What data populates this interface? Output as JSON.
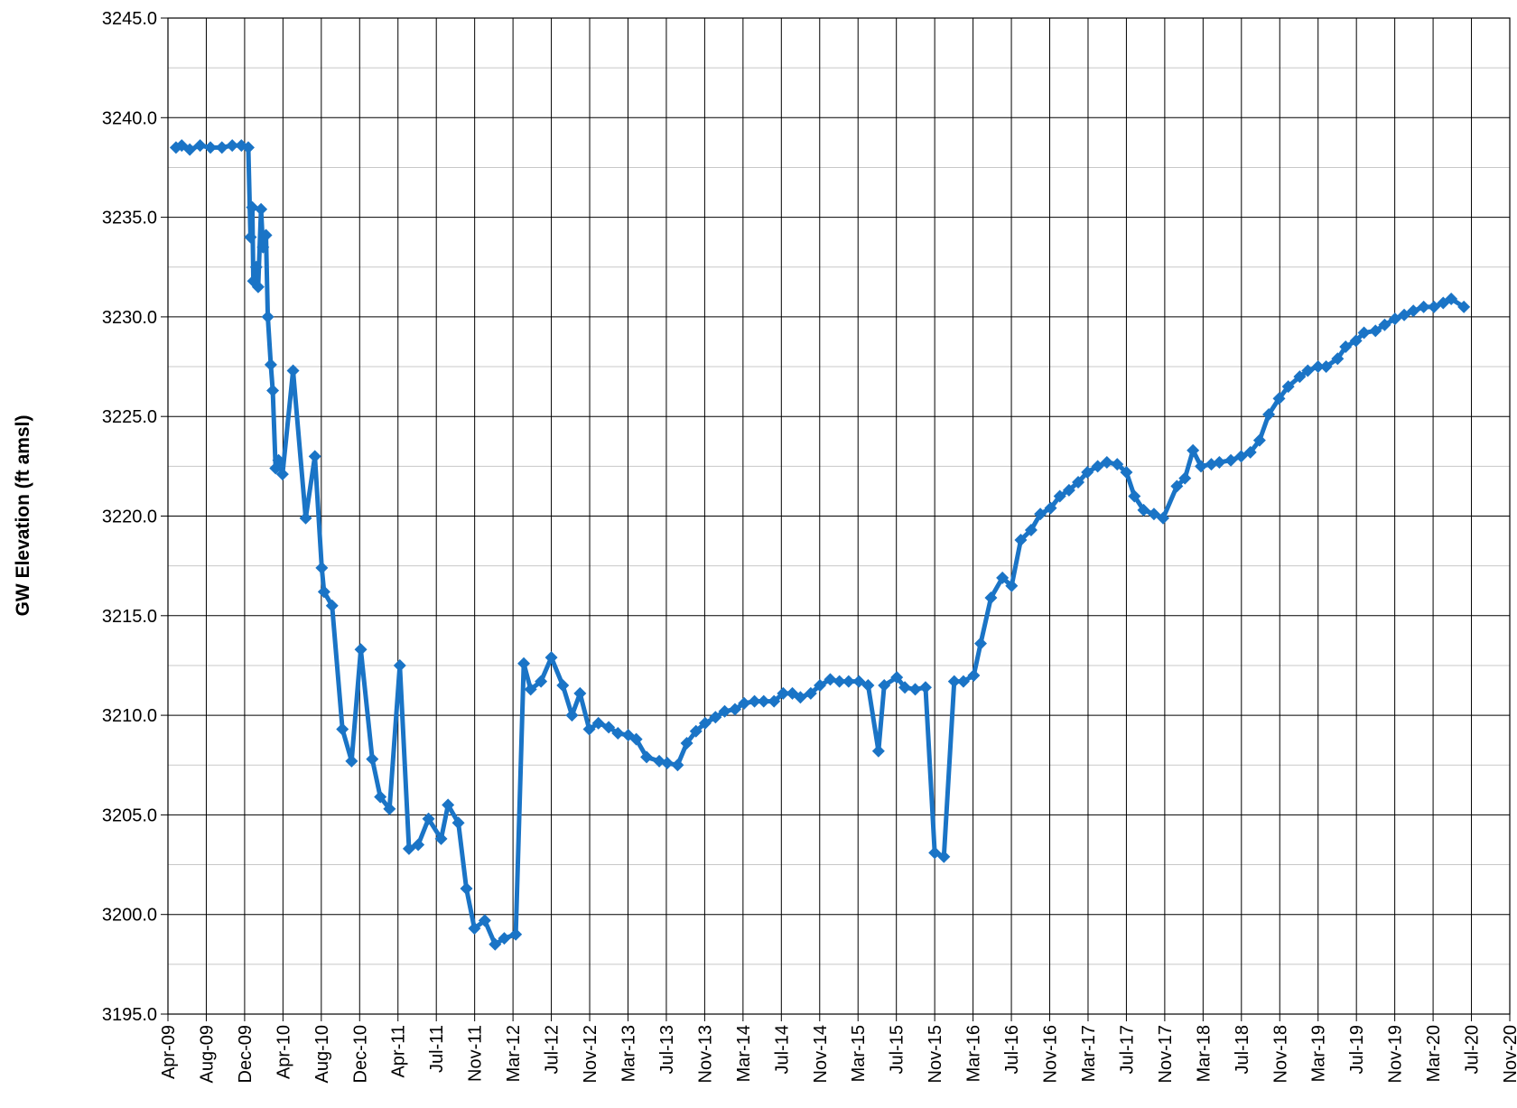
{
  "chart_data": {
    "type": "line",
    "y_label": "GW Elevation (ft amsl)",
    "xlim": [
      2009.25,
      2020.94
    ],
    "xticks": [
      {
        "value": 2009.25,
        "label": "Apr-09"
      },
      {
        "value": 2009.584,
        "label": "Aug-09"
      },
      {
        "value": 2009.918,
        "label": "Dec-09"
      },
      {
        "value": 2010.252,
        "label": "Apr-10"
      },
      {
        "value": 2010.586,
        "label": "Aug-10"
      },
      {
        "value": 2010.92,
        "label": "Dec-10"
      },
      {
        "value": 2011.254,
        "label": "Apr-11"
      },
      {
        "value": 2011.588,
        "label": "Jul-11"
      },
      {
        "value": 2011.922,
        "label": "Nov-11"
      },
      {
        "value": 2012.256,
        "label": "Mar-12"
      },
      {
        "value": 2012.59,
        "label": "Jul-12"
      },
      {
        "value": 2012.924,
        "label": "Nov-12"
      },
      {
        "value": 2013.258,
        "label": "Mar-13"
      },
      {
        "value": 2013.592,
        "label": "Jul-13"
      },
      {
        "value": 2013.926,
        "label": "Nov-13"
      },
      {
        "value": 2014.26,
        "label": "Mar-14"
      },
      {
        "value": 2014.594,
        "label": "Jul-14"
      },
      {
        "value": 2014.928,
        "label": "Nov-14"
      },
      {
        "value": 2015.262,
        "label": "Mar-15"
      },
      {
        "value": 2015.596,
        "label": "Jul-15"
      },
      {
        "value": 2015.93,
        "label": "Nov-15"
      },
      {
        "value": 2016.264,
        "label": "Mar-16"
      },
      {
        "value": 2016.598,
        "label": "Jul-16"
      },
      {
        "value": 2016.932,
        "label": "Nov-16"
      },
      {
        "value": 2017.266,
        "label": "Mar-17"
      },
      {
        "value": 2017.6,
        "label": "Jul-17"
      },
      {
        "value": 2017.934,
        "label": "Nov-17"
      },
      {
        "value": 2018.268,
        "label": "Mar-18"
      },
      {
        "value": 2018.602,
        "label": "Jul-18"
      },
      {
        "value": 2018.936,
        "label": "Nov-18"
      },
      {
        "value": 2019.27,
        "label": "Mar-19"
      },
      {
        "value": 2019.604,
        "label": "Jul-19"
      },
      {
        "value": 2019.938,
        "label": "Nov-19"
      },
      {
        "value": 2020.272,
        "label": "Mar-20"
      },
      {
        "value": 2020.606,
        "label": "Jul-20"
      },
      {
        "value": 2020.94,
        "label": "Nov-20"
      }
    ],
    "ylim": [
      3195,
      3245
    ],
    "yticks": [
      {
        "value": 3195,
        "label": "3195.0"
      },
      {
        "value": 3200,
        "label": "3200.0"
      },
      {
        "value": 3205,
        "label": "3205.0"
      },
      {
        "value": 3210,
        "label": "3210.0"
      },
      {
        "value": 3215,
        "label": "3215.0"
      },
      {
        "value": 3220,
        "label": "3220.0"
      },
      {
        "value": 3225,
        "label": "3225.0"
      },
      {
        "value": 3230,
        "label": "3230.0"
      },
      {
        "value": 3235,
        "label": "3235.0"
      },
      {
        "value": 3240,
        "label": "3240.0"
      },
      {
        "value": 3245,
        "label": "3245.0"
      }
    ],
    "yminorticks": [
      3197.5,
      3202.5,
      3207.5,
      3212.5,
      3217.5,
      3222.5,
      3227.5,
      3232.5,
      3237.5,
      3242.5
    ],
    "grid": true,
    "color": "#1a74c6",
    "x": [
      2009.32,
      2009.37,
      2009.44,
      2009.53,
      2009.62,
      2009.72,
      2009.81,
      2009.89,
      2009.95,
      2009.969,
      2009.985,
      2009.994,
      2010.019,
      2010.036,
      2010.061,
      2010.078,
      2010.104,
      2010.12,
      2010.146,
      2010.163,
      2010.188,
      2010.214,
      2010.248,
      2010.34,
      2010.45,
      2010.53,
      2010.59,
      2010.61,
      2010.68,
      2010.77,
      2010.85,
      2010.93,
      2011.03,
      2011.1,
      2011.18,
      2011.27,
      2011.35,
      2011.43,
      2011.52,
      2011.63,
      2011.69,
      2011.78,
      2011.85,
      2011.92,
      2012.01,
      2012.1,
      2012.18,
      2012.28,
      2012.35,
      2012.41,
      2012.5,
      2012.59,
      2012.69,
      2012.77,
      2012.84,
      2012.92,
      2013.0,
      2013.09,
      2013.17,
      2013.26,
      2013.33,
      2013.42,
      2013.53,
      2013.6,
      2013.69,
      2013.77,
      2013.85,
      2013.93,
      2014.02,
      2014.1,
      2014.19,
      2014.27,
      2014.36,
      2014.44,
      2014.53,
      2014.61,
      2014.69,
      2014.76,
      2014.85,
      2014.93,
      2015.02,
      2015.1,
      2015.18,
      2015.27,
      2015.35,
      2015.44,
      2015.49,
      2015.6,
      2015.67,
      2015.76,
      2015.85,
      2015.93,
      2016.01,
      2016.1,
      2016.18,
      2016.27,
      2016.33,
      2016.42,
      2016.52,
      2016.6,
      2016.68,
      2016.77,
      2016.85,
      2016.94,
      2017.02,
      2017.1,
      2017.18,
      2017.26,
      2017.35,
      2017.43,
      2017.52,
      2017.6,
      2017.67,
      2017.75,
      2017.84,
      2017.92,
      2018.04,
      2018.11,
      2018.18,
      2018.25,
      2018.34,
      2018.41,
      2018.51,
      2018.6,
      2018.68,
      2018.76,
      2018.84,
      2018.93,
      2019.01,
      2019.11,
      2019.18,
      2019.27,
      2019.34,
      2019.44,
      2019.51,
      2019.6,
      2019.67,
      2019.77,
      2019.85,
      2019.94,
      2020.02,
      2020.1,
      2020.19,
      2020.28,
      2020.36,
      2020.43,
      2020.54
    ],
    "values": [
      3238.5,
      3238.6,
      3238.4,
      3238.6,
      3238.5,
      3238.5,
      3238.6,
      3238.6,
      3238.5,
      3234.0,
      3235.5,
      3231.8,
      3232.5,
      3231.5,
      3235.4,
      3233.5,
      3234.1,
      3230.0,
      3227.6,
      3226.3,
      3222.4,
      3222.8,
      3222.1,
      3227.3,
      3219.9,
      3223.0,
      3217.4,
      3216.2,
      3215.5,
      3209.3,
      3207.7,
      3213.3,
      3207.8,
      3205.9,
      3205.3,
      3212.5,
      3203.3,
      3203.5,
      3204.8,
      3203.8,
      3205.5,
      3204.6,
      3201.3,
      3199.3,
      3199.7,
      3198.5,
      3198.8,
      3199.0,
      3212.6,
      3211.3,
      3211.7,
      3212.9,
      3211.5,
      3210.0,
      3211.1,
      3209.3,
      3209.6,
      3209.4,
      3209.1,
      3209.0,
      3208.8,
      3207.9,
      3207.7,
      3207.6,
      3207.5,
      3208.6,
      3209.2,
      3209.6,
      3209.9,
      3210.2,
      3210.3,
      3210.6,
      3210.7,
      3210.7,
      3210.7,
      3211.1,
      3211.1,
      3210.9,
      3211.1,
      3211.5,
      3211.8,
      3211.7,
      3211.7,
      3211.7,
      3211.5,
      3208.2,
      3211.5,
      3211.9,
      3211.4,
      3211.3,
      3211.4,
      3203.1,
      3202.9,
      3211.7,
      3211.7,
      3212.0,
      3213.6,
      3215.9,
      3216.9,
      3216.5,
      3218.8,
      3219.3,
      3220.1,
      3220.4,
      3221.0,
      3221.3,
      3221.7,
      3222.2,
      3222.5,
      3222.7,
      3222.6,
      3222.2,
      3221.0,
      3220.3,
      3220.1,
      3219.9,
      3221.5,
      3221.9,
      3223.3,
      3222.5,
      3222.6,
      3222.7,
      3222.8,
      3223.0,
      3223.2,
      3223.8,
      3225.1,
      3225.9,
      3226.5,
      3227.0,
      3227.3,
      3227.5,
      3227.5,
      3227.9,
      3228.5,
      3228.8,
      3229.2,
      3229.3,
      3229.6,
      3229.9,
      3230.1,
      3230.3,
      3230.5,
      3230.5,
      3230.7,
      3230.9,
      3230.5
    ]
  }
}
